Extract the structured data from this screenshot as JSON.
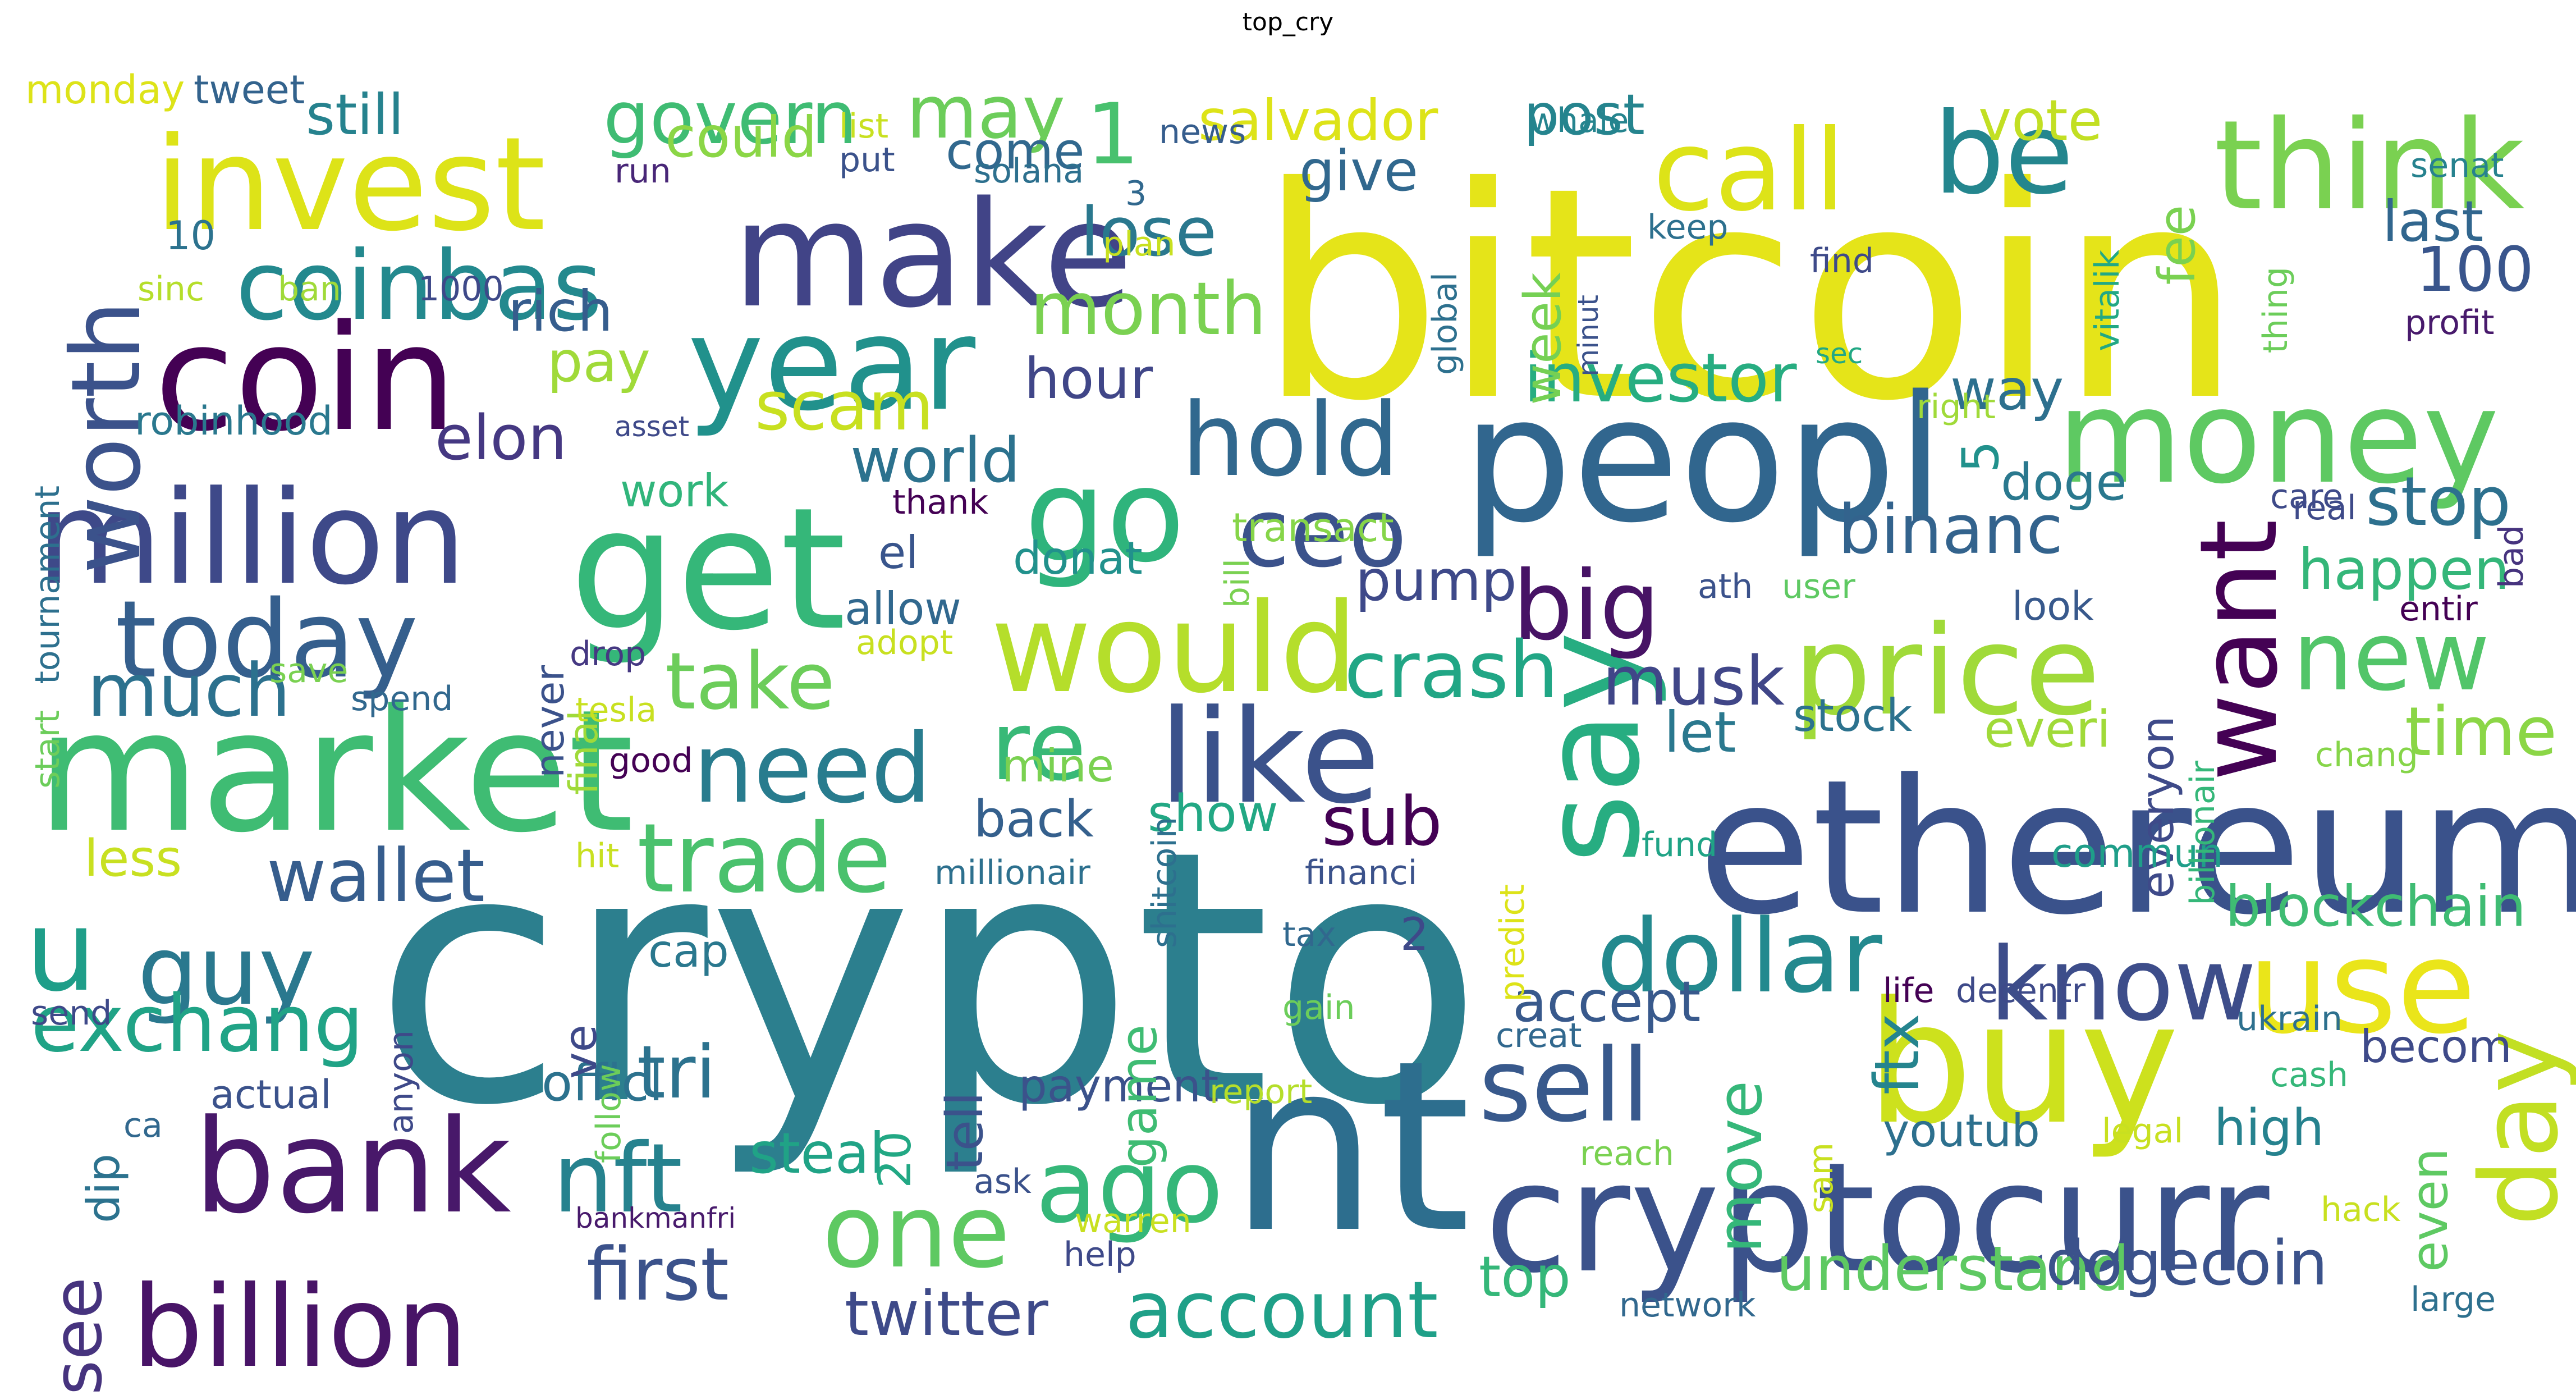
{
  "title": "top_cry",
  "words": [
    {
      "text": "crypto",
      "color": "#2c7f8e"
    },
    {
      "text": "bitcoin",
      "color": "#e5e419"
    },
    {
      "text": "nt",
      "color": "#2d6e8e"
    },
    {
      "text": "ethereum",
      "color": "#3a528b"
    },
    {
      "text": "peopl",
      "color": "#31668e"
    },
    {
      "text": "market",
      "color": "#3fbc73"
    },
    {
      "text": "get",
      "color": "#35b779"
    },
    {
      "text": "make",
      "color": "#414487"
    },
    {
      "text": "coin",
      "color": "#440154"
    },
    {
      "text": "cryptocurr",
      "color": "#3b528b"
    },
    {
      "text": "buy",
      "color": "#cde11d"
    },
    {
      "text": "say",
      "color": "#27ad81"
    },
    {
      "text": "million",
      "color": "#3e4989"
    },
    {
      "text": "money",
      "color": "#5ec962"
    },
    {
      "text": "year",
      "color": "#21918c"
    },
    {
      "text": "invest",
      "color": "#dde318"
    },
    {
      "text": "go",
      "color": "#2fb47c"
    },
    {
      "text": "bank",
      "color": "#48186a"
    },
    {
      "text": "like",
      "color": "#3b528b"
    },
    {
      "text": "would",
      "color": "#b5de2b"
    },
    {
      "text": "use",
      "color": "#eae51a"
    },
    {
      "text": "price",
      "color": "#a0da39"
    },
    {
      "text": "think",
      "color": "#7ad151"
    },
    {
      "text": "billion",
      "color": "#481467"
    },
    {
      "text": "u",
      "color": "#1f9e89"
    },
    {
      "text": "call",
      "color": "#dde318"
    },
    {
      "text": "be",
      "color": "#24868e"
    },
    {
      "text": "day",
      "color": "#c2df23"
    },
    {
      "text": "want",
      "color": "#440154"
    },
    {
      "text": "today",
      "color": "#355f8d"
    },
    {
      "text": "dollar",
      "color": "#23898e"
    },
    {
      "text": "know",
      "color": "#3d4d8a"
    },
    {
      "text": "one",
      "color": "#5ec962"
    },
    {
      "text": "ago",
      "color": "#35b779"
    },
    {
      "text": "sell",
      "color": "#38598c"
    },
    {
      "text": "hold",
      "color": "#31688e"
    },
    {
      "text": "ceo",
      "color": "#3b528b"
    },
    {
      "text": "worth",
      "color": "#3b528b"
    },
    {
      "text": "coinbas",
      "color": "#23898e"
    },
    {
      "text": "guy",
      "color": "#2a788e"
    },
    {
      "text": "big",
      "color": "#471365"
    },
    {
      "text": "trade",
      "color": "#4ac16d"
    },
    {
      "text": "need",
      "color": "#287c8e"
    },
    {
      "text": "re",
      "color": "#38b977"
    },
    {
      "text": "new",
      "color": "#52c569"
    },
    {
      "text": "nft",
      "color": "#26828e"
    },
    {
      "text": "account",
      "color": "#1fa088"
    },
    {
      "text": "exchang",
      "color": "#20a386"
    },
    {
      "text": "govern",
      "color": "#3fbc73"
    },
    {
      "text": "may",
      "color": "#6ccd5a"
    },
    {
      "text": "1",
      "color": "#48c16e"
    },
    {
      "text": "crash",
      "color": "#21a685"
    },
    {
      "text": "take",
      "color": "#6ccd5a"
    },
    {
      "text": "tri",
      "color": "#2c728e"
    },
    {
      "text": "first",
      "color": "#3b528b"
    },
    {
      "text": "wallet",
      "color": "#365d8d"
    },
    {
      "text": "much",
      "color": "#2c718e"
    },
    {
      "text": "month",
      "color": "#7ad151"
    },
    {
      "text": "lose",
      "color": "#2a788e"
    },
    {
      "text": "binanc",
      "color": "#33638d"
    },
    {
      "text": "investor",
      "color": "#27ad81"
    },
    {
      "text": "musk",
      "color": "#404688"
    },
    {
      "text": "scam",
      "color": "#c8e020"
    },
    {
      "text": "stop",
      "color": "#2d708e"
    },
    {
      "text": "time",
      "color": "#8bd646"
    },
    {
      "text": "see",
      "color": "#46337e"
    },
    {
      "text": "100",
      "color": "#39558c"
    },
    {
      "text": "last",
      "color": "#31668e"
    },
    {
      "text": "understand",
      "color": "#5ec962"
    },
    {
      "text": "dogecoin",
      "color": "#3b528b"
    },
    {
      "text": "twitter",
      "color": "#3e4a89"
    },
    {
      "text": "blockchain",
      "color": "#3fbc73"
    },
    {
      "text": "move",
      "color": "#35b779"
    },
    {
      "text": "ftx",
      "color": "#25848e"
    },
    {
      "text": "sub",
      "color": "#440154"
    },
    {
      "text": "elon",
      "color": "#453882"
    },
    {
      "text": "world",
      "color": "#2c728e"
    },
    {
      "text": "salvador",
      "color": "#dde318"
    },
    {
      "text": "post",
      "color": "#25848e"
    },
    {
      "text": "vote",
      "color": "#c2df23"
    },
    {
      "text": "could",
      "color": "#8bd646"
    },
    {
      "text": "still",
      "color": "#26828e"
    },
    {
      "text": "come",
      "color": "#31688e"
    },
    {
      "text": "give",
      "color": "#31688e"
    },
    {
      "text": "rich",
      "color": "#365d8d"
    },
    {
      "text": "pay",
      "color": "#a0da39"
    },
    {
      "text": "hour",
      "color": "#404688"
    },
    {
      "text": "way",
      "color": "#2d708e"
    },
    {
      "text": "doge",
      "color": "#2a788e"
    },
    {
      "text": "happen",
      "color": "#34b679"
    },
    {
      "text": "pump",
      "color": "#3e4989"
    },
    {
      "text": "steal",
      "color": "#20a386"
    },
    {
      "text": "accept",
      "color": "#38598c"
    },
    {
      "text": "payment",
      "color": "#3b528b"
    },
    {
      "text": "top",
      "color": "#35b779"
    },
    {
      "text": "youtub",
      "color": "#2d708e"
    },
    {
      "text": "becom",
      "color": "#3e4a89"
    },
    {
      "text": "even",
      "color": "#5ec962"
    },
    {
      "text": "high",
      "color": "#26828e"
    },
    {
      "text": "everi",
      "color": "#a0da39"
    },
    {
      "text": "let",
      "color": "#2a788e"
    },
    {
      "text": "stock",
      "color": "#2c728e"
    },
    {
      "text": "back",
      "color": "#35608d"
    },
    {
      "text": "mine",
      "color": "#7ad151"
    },
    {
      "text": "show",
      "color": "#22a884"
    },
    {
      "text": "officl",
      "color": "#2c728e"
    },
    {
      "text": "cap",
      "color": "#2a788e"
    },
    {
      "text": "tell",
      "color": "#3b528b"
    },
    {
      "text": "game",
      "color": "#3fbc73"
    },
    {
      "text": "20",
      "color": "#22a884"
    },
    {
      "text": "ve",
      "color": "#3e4989"
    },
    {
      "text": "2",
      "color": "#3e4989"
    },
    {
      "text": "el",
      "color": "#39558c"
    },
    {
      "text": "donat",
      "color": "#21918c"
    },
    {
      "text": "allow",
      "color": "#31688e"
    },
    {
      "text": "work",
      "color": "#31b57b"
    },
    {
      "text": "robinhood",
      "color": "#2a788e"
    },
    {
      "text": "10",
      "color": "#2c728e"
    },
    {
      "text": "less",
      "color": "#c8e020"
    },
    {
      "text": "week",
      "color": "#75d054"
    },
    {
      "text": "fee",
      "color": "#7ad151"
    },
    {
      "text": "everyon",
      "color": "#3e4a89"
    },
    {
      "text": "5",
      "color": "#21918c"
    },
    {
      "text": "3",
      "color": "#31688e"
    },
    {
      "text": "commun",
      "color": "#1f9e89"
    },
    {
      "text": "dip",
      "color": "#2c728e"
    },
    {
      "text": "transact",
      "color": "#86d549"
    },
    {
      "text": "look",
      "color": "#38598c"
    },
    {
      "text": "never",
      "color": "#3b528b"
    },
    {
      "text": "final",
      "color": "#a0da39"
    },
    {
      "text": "drop",
      "color": "#453882"
    },
    {
      "text": "actual",
      "color": "#3b528b"
    },
    {
      "text": "sinc",
      "color": "#b5de2b"
    },
    {
      "text": "ban",
      "color": "#a0da39"
    },
    {
      "text": "1000",
      "color": "#3e4989"
    },
    {
      "text": "monday",
      "color": "#dde318"
    },
    {
      "text": "tweet",
      "color": "#33638d"
    },
    {
      "text": "list",
      "color": "#c8e020"
    },
    {
      "text": "news",
      "color": "#365d8d"
    },
    {
      "text": "put",
      "color": "#3b528b"
    },
    {
      "text": "run",
      "color": "#482677"
    },
    {
      "text": "solana",
      "color": "#2d708e"
    },
    {
      "text": "plan",
      "color": "#c8e020"
    },
    {
      "text": "whale",
      "color": "#25848e"
    },
    {
      "text": "senat",
      "color": "#26828e"
    },
    {
      "text": "keep",
      "color": "#2d708e"
    },
    {
      "text": "find",
      "color": "#3e4a89"
    },
    {
      "text": "vitalik",
      "color": "#22a884"
    },
    {
      "text": "profit",
      "color": "#481a6c"
    },
    {
      "text": "thing",
      "color": "#6ccd5a"
    },
    {
      "text": "sec",
      "color": "#22a884"
    },
    {
      "text": "right",
      "color": "#a0da39"
    },
    {
      "text": "global",
      "color": "#2d708e"
    },
    {
      "text": "minut",
      "color": "#3b528b"
    },
    {
      "text": "tournament",
      "color": "#2d708e"
    },
    {
      "text": "asset",
      "color": "#3e4989"
    },
    {
      "text": "bad",
      "color": "#46337e"
    },
    {
      "text": "care",
      "color": "#3e4a89"
    },
    {
      "text": "real",
      "color": "#3e4a89"
    },
    {
      "text": "thank",
      "color": "#440154"
    },
    {
      "text": "bill",
      "color": "#7ad151"
    },
    {
      "text": "ath",
      "color": "#3b528b"
    },
    {
      "text": "user",
      "color": "#5ec962"
    },
    {
      "text": "billionair",
      "color": "#35b779"
    },
    {
      "text": "entir",
      "color": "#440154"
    },
    {
      "text": "start",
      "color": "#6ccd5a"
    },
    {
      "text": "save",
      "color": "#7ad151"
    },
    {
      "text": "spend",
      "color": "#31688e"
    },
    {
      "text": "adopt",
      "color": "#c8e020"
    },
    {
      "text": "tesla",
      "color": "#c8e020"
    },
    {
      "text": "good",
      "color": "#440154"
    },
    {
      "text": "shitcoin",
      "color": "#2d708e"
    },
    {
      "text": "predict",
      "color": "#dde318"
    },
    {
      "text": "chang",
      "color": "#86d549"
    },
    {
      "text": "fund",
      "color": "#20a386"
    },
    {
      "text": "hit",
      "color": "#c8e020"
    },
    {
      "text": "millionair",
      "color": "#2d708e"
    },
    {
      "text": "financi",
      "color": "#3b528b"
    },
    {
      "text": "anyon",
      "color": "#3e4989"
    },
    {
      "text": "follow",
      "color": "#6ccd5a"
    },
    {
      "text": "send",
      "color": "#3e4989"
    },
    {
      "text": "tax",
      "color": "#31688e"
    },
    {
      "text": "gain",
      "color": "#6ccd5a"
    },
    {
      "text": "life",
      "color": "#440154"
    },
    {
      "text": "decentr",
      "color": "#3e4a89"
    },
    {
      "text": "ukrain",
      "color": "#2d708e"
    },
    {
      "text": "creat",
      "color": "#31688e"
    },
    {
      "text": "cash",
      "color": "#35b779"
    },
    {
      "text": "report",
      "color": "#b5de2b"
    },
    {
      "text": "sam",
      "color": "#c8e020"
    },
    {
      "text": "reach",
      "color": "#7ad151"
    },
    {
      "text": "legal",
      "color": "#c8e020"
    },
    {
      "text": "ca",
      "color": "#31688e"
    },
    {
      "text": "ask",
      "color": "#3b528b"
    },
    {
      "text": "bankmanfri",
      "color": "#481a6c"
    },
    {
      "text": "warren",
      "color": "#c8e020"
    },
    {
      "text": "help",
      "color": "#3e4989"
    },
    {
      "text": "hack",
      "color": "#c8e020"
    },
    {
      "text": "network",
      "color": "#31688e"
    },
    {
      "text": "large",
      "color": "#2d708e"
    }
  ]
}
